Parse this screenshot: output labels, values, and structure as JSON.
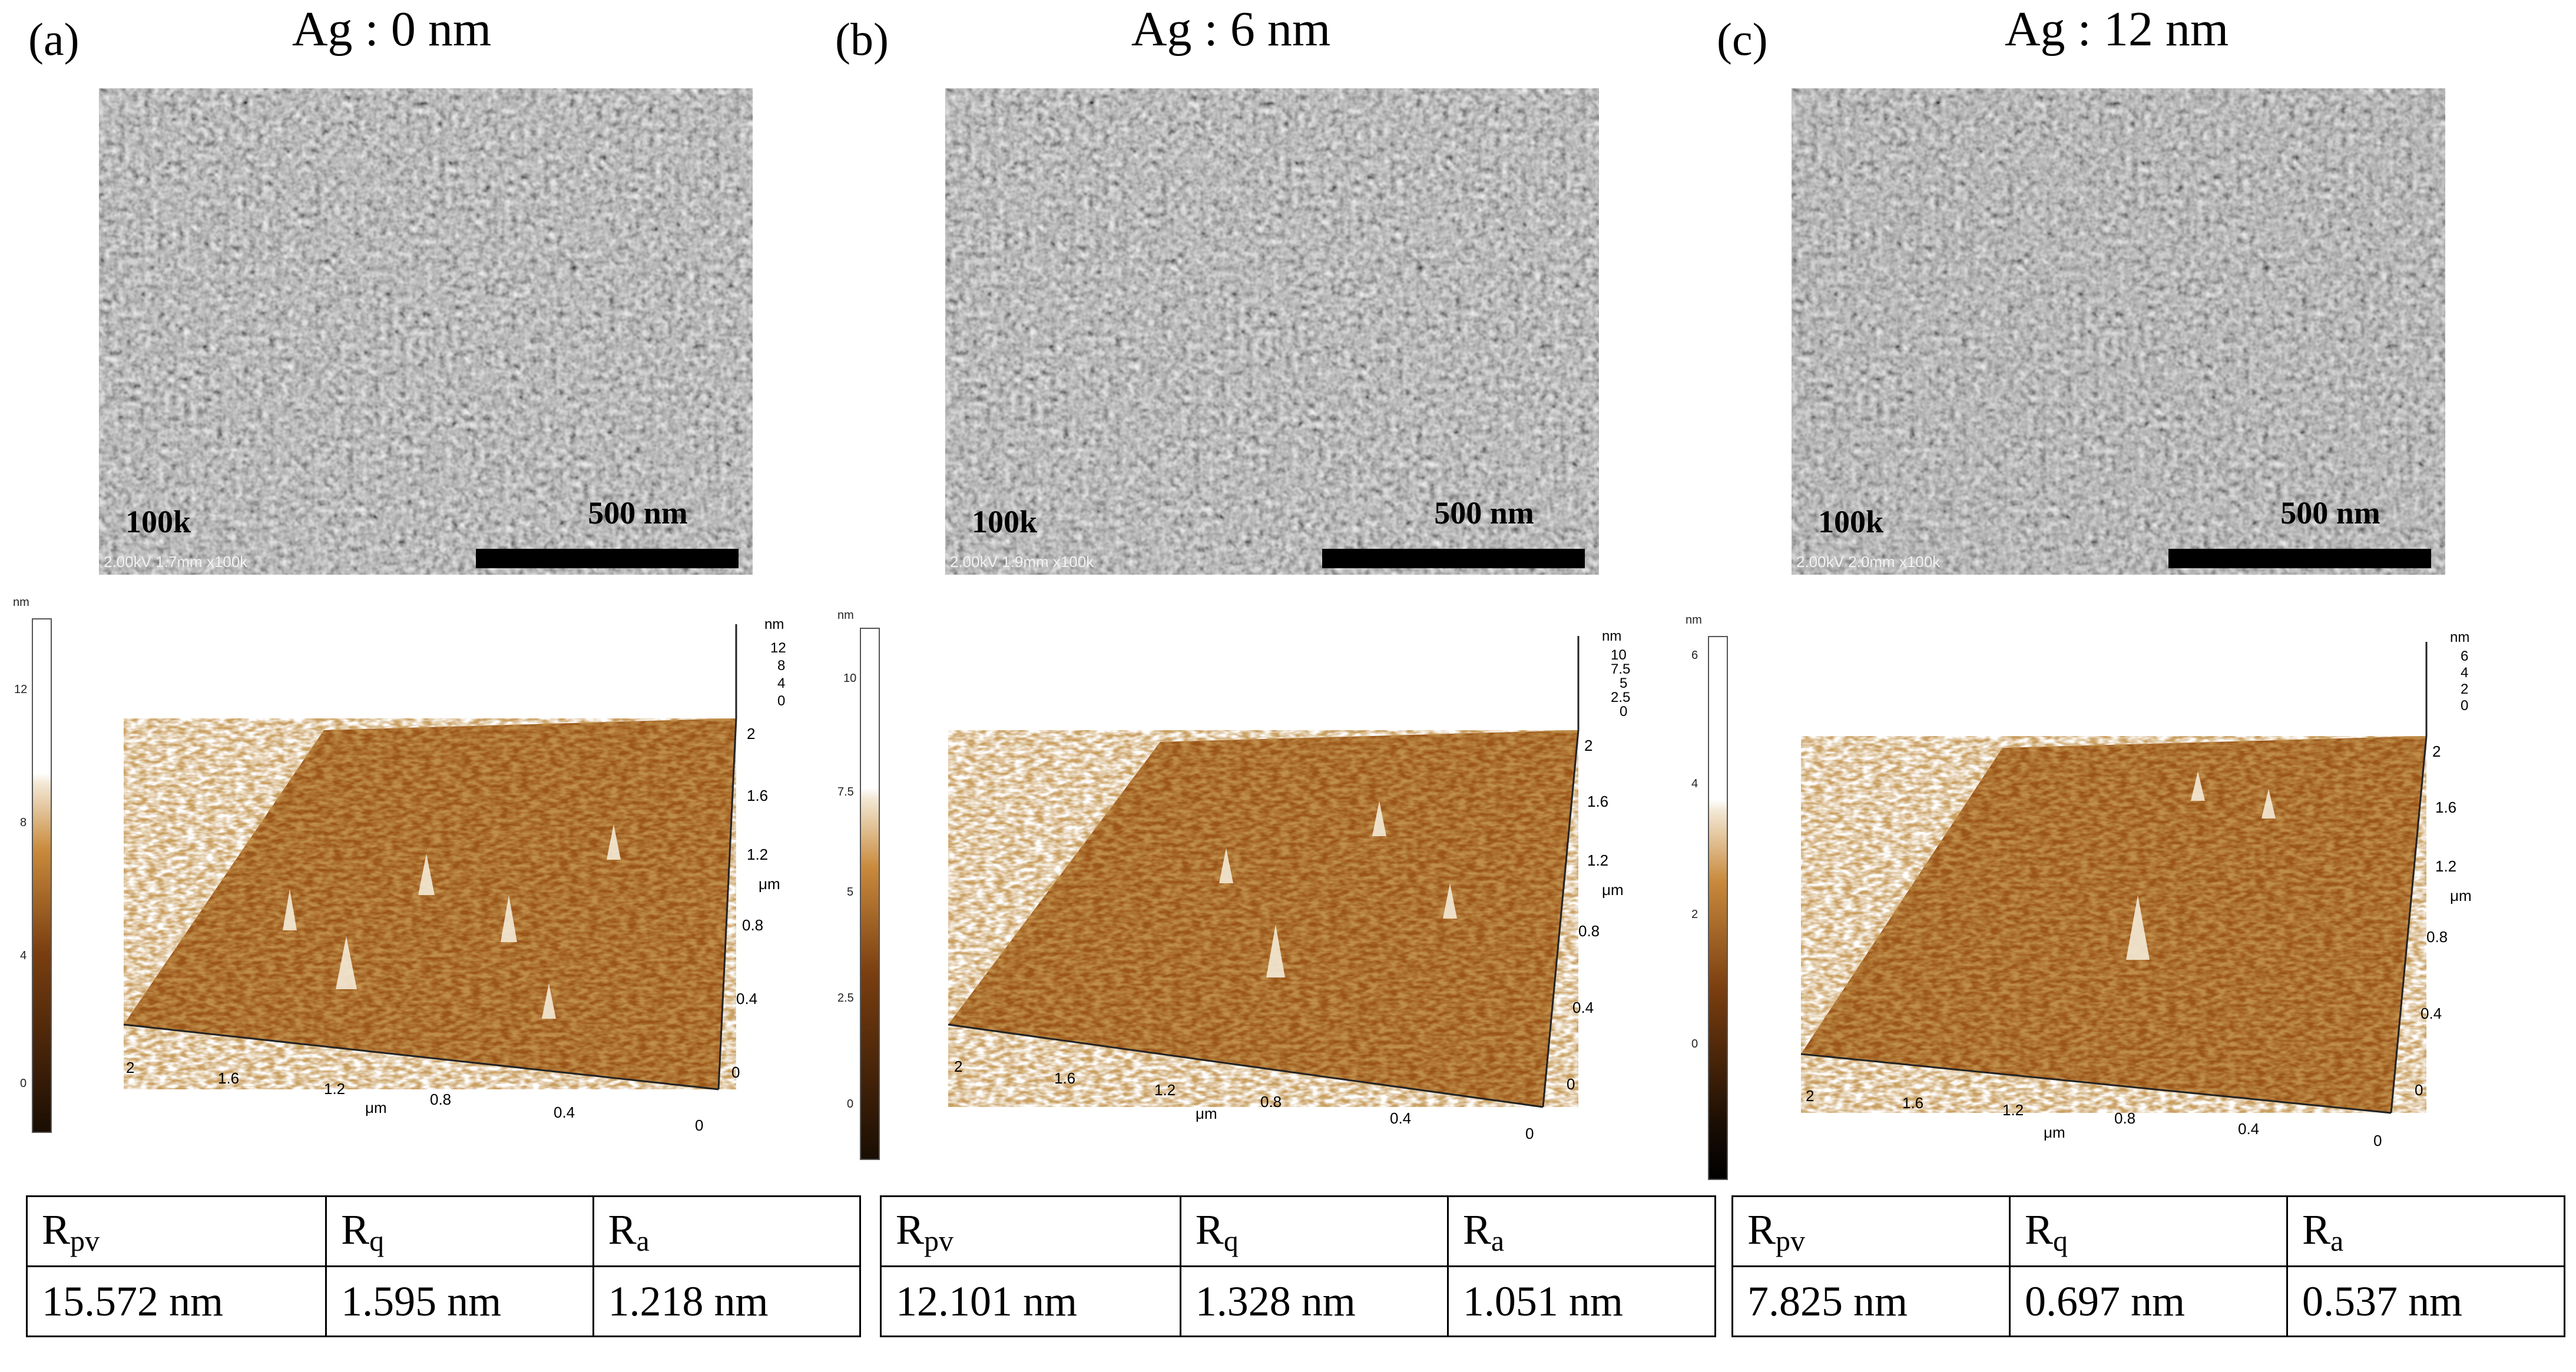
{
  "panels": [
    {
      "label": "(a)",
      "title": "Ag : 0 nm",
      "sem": {
        "magnification": "100k",
        "scale": "500 nm",
        "info": "2.00kV 1.7mm x100k"
      },
      "afm": {
        "z_unit": "nm",
        "colorbar_ticks": [
          "12",
          "8",
          "4",
          "0"
        ],
        "z_ticks": [
          "12",
          "8",
          "4",
          "0"
        ],
        "y_ticks": [
          "2",
          "1.6",
          "1.2",
          "0.8",
          "0.4",
          "0"
        ],
        "x_ticks": [
          "2",
          "1.6",
          "1.2",
          "0.8",
          "0.4",
          "0"
        ],
        "axis_unit": "μm"
      },
      "roughness": {
        "headers": [
          "R",
          "R",
          "R"
        ],
        "subs": [
          "pv",
          "q",
          "a"
        ],
        "values": [
          "15.572 nm",
          "1.595 nm",
          "1.218 nm"
        ]
      }
    },
    {
      "label": "(b)",
      "title": "Ag : 6 nm",
      "sem": {
        "magnification": "100k",
        "scale": "500 nm",
        "info": "2.00kV 1.9mm x100k"
      },
      "afm": {
        "z_unit": "nm",
        "colorbar_ticks": [
          "10",
          "7.5",
          "5",
          "2.5",
          "0"
        ],
        "z_ticks": [
          "10",
          "7.5",
          "5",
          "2.5",
          "0"
        ],
        "y_ticks": [
          "2",
          "1.6",
          "1.2",
          "0.8",
          "0.4",
          "0"
        ],
        "x_ticks": [
          "2",
          "1.6",
          "1.2",
          "0.8",
          "0.4",
          "0"
        ],
        "axis_unit": "μm"
      },
      "roughness": {
        "headers": [
          "R",
          "R",
          "R"
        ],
        "subs": [
          "pv",
          "q",
          "a"
        ],
        "values": [
          "12.101 nm",
          "1.328 nm",
          "1.051 nm"
        ]
      }
    },
    {
      "label": "(c)",
      "title": "Ag : 12 nm",
      "sem": {
        "magnification": "100k",
        "scale": "500 nm",
        "info": "2.00kV 2.0mm x100k"
      },
      "afm": {
        "z_unit": "nm",
        "colorbar_ticks": [
          "6",
          "4",
          "2",
          "0"
        ],
        "z_ticks": [
          "6",
          "4",
          "2",
          "0"
        ],
        "y_ticks": [
          "2",
          "1.6",
          "1.2",
          "0.8",
          "0.4",
          "0"
        ],
        "x_ticks": [
          "2",
          "1.6",
          "1.2",
          "0.8",
          "0.4",
          "0"
        ],
        "axis_unit": "μm"
      },
      "roughness": {
        "headers": [
          "R",
          "R",
          "R"
        ],
        "subs": [
          "pv",
          "q",
          "a"
        ],
        "values": [
          "7.825 nm",
          "0.697 nm",
          "0.537 nm"
        ]
      }
    }
  ],
  "colors": {
    "afm_dark": "#3a1a05",
    "afm_mid": "#b5651d",
    "afm_light": "#f0e6d2",
    "sem_gray": "#8a8a8a"
  }
}
